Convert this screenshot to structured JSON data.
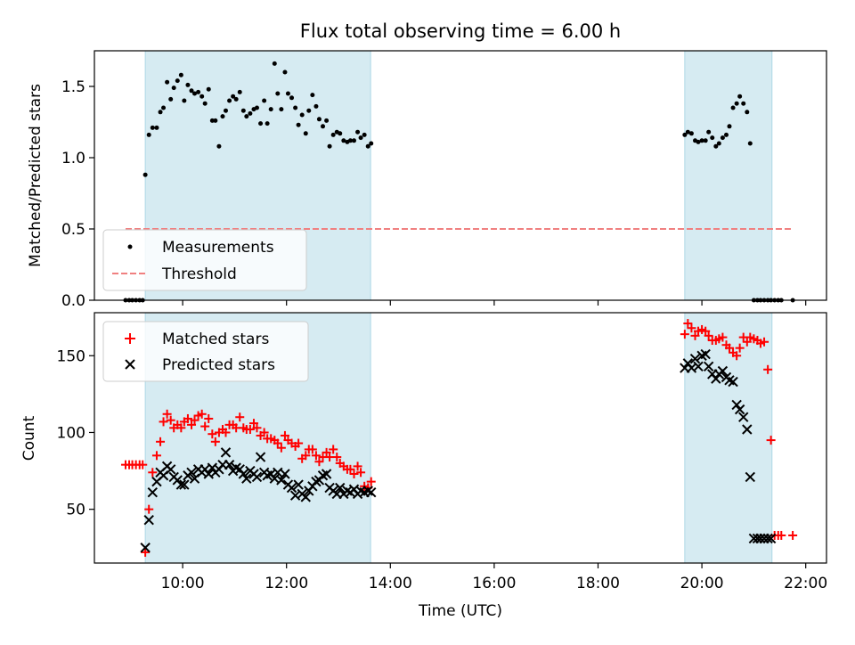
{
  "figure": {
    "title": "Flux total observing time = 6.00 h"
  },
  "chart_data": [
    {
      "type": "scatter",
      "ylabel": "Matched/Predicted stars",
      "ylim": [
        0,
        1.75
      ],
      "xlim": [
        8.3,
        22.4
      ],
      "yticks": [
        0.0,
        0.5,
        1.0,
        1.5
      ],
      "ytick_labels": [
        "0.0",
        "0.5",
        "1.0",
        "1.5"
      ],
      "observing_windows": [
        [
          9.28,
          13.62
        ],
        [
          19.67,
          21.35
        ]
      ],
      "legend": {
        "position": "lower-left",
        "entries": [
          "Measurements",
          "Threshold"
        ]
      },
      "threshold": {
        "name": "Threshold",
        "y": 0.5,
        "x": [
          8.9,
          21.75
        ],
        "color": "#f08080"
      },
      "series": [
        {
          "name": "Measurements",
          "color": "#000000",
          "x": [
            8.9,
            8.97,
            9.03,
            9.1,
            9.17,
            9.23,
            9.28,
            9.35,
            9.42,
            9.5,
            9.57,
            9.63,
            9.7,
            9.77,
            9.83,
            9.9,
            9.97,
            10.03,
            10.1,
            10.17,
            10.23,
            10.3,
            10.37,
            10.43,
            10.5,
            10.57,
            10.63,
            10.7,
            10.77,
            10.83,
            10.9,
            10.97,
            11.03,
            11.1,
            11.17,
            11.23,
            11.3,
            11.37,
            11.43,
            11.5,
            11.57,
            11.63,
            11.7,
            11.77,
            11.83,
            11.9,
            11.97,
            12.03,
            12.1,
            12.17,
            12.23,
            12.3,
            12.37,
            12.43,
            12.5,
            12.57,
            12.63,
            12.7,
            12.77,
            12.83,
            12.9,
            12.97,
            13.03,
            13.1,
            13.17,
            13.23,
            13.3,
            13.37,
            13.43,
            13.5,
            13.57,
            13.63,
            19.67,
            19.73,
            19.8,
            19.87,
            19.93,
            20.0,
            20.07,
            20.13,
            20.2,
            20.27,
            20.33,
            20.4,
            20.47,
            20.53,
            20.6,
            20.67,
            20.73,
            20.8,
            20.87,
            20.93,
            21.0,
            21.07,
            21.13,
            21.2,
            21.27,
            21.33,
            21.4,
            21.47,
            21.53,
            21.75
          ],
          "y": [
            0.0,
            0.0,
            0.0,
            0.0,
            0.0,
            0.0,
            0.88,
            1.16,
            1.21,
            1.21,
            1.32,
            1.35,
            1.53,
            1.41,
            1.49,
            1.54,
            1.58,
            1.4,
            1.51,
            1.47,
            1.45,
            1.46,
            1.43,
            1.38,
            1.48,
            1.26,
            1.26,
            1.08,
            1.29,
            1.33,
            1.4,
            1.43,
            1.41,
            1.46,
            1.33,
            1.29,
            1.31,
            1.34,
            1.35,
            1.24,
            1.4,
            1.24,
            1.34,
            1.66,
            1.45,
            1.34,
            1.6,
            1.45,
            1.42,
            1.35,
            1.23,
            1.3,
            1.17,
            1.33,
            1.44,
            1.36,
            1.27,
            1.22,
            1.26,
            1.08,
            1.16,
            1.18,
            1.17,
            1.12,
            1.11,
            1.12,
            1.12,
            1.18,
            1.14,
            1.16,
            1.08,
            1.1,
            1.16,
            1.18,
            1.17,
            1.12,
            1.11,
            1.12,
            1.12,
            1.18,
            1.14,
            1.08,
            1.1,
            1.14,
            1.16,
            1.22,
            1.35,
            1.38,
            1.43,
            1.38,
            1.32,
            1.1,
            0.0,
            0.0,
            0.0,
            0.0,
            0.0,
            0.0,
            0.0,
            0.0,
            0.0,
            0.0
          ]
        }
      ]
    },
    {
      "type": "scatter",
      "xlabel": "Time (UTC)",
      "ylabel": "Count",
      "ylim": [
        15,
        178
      ],
      "xlim": [
        8.3,
        22.4
      ],
      "yticks": [
        50,
        100,
        150
      ],
      "ytick_labels": [
        "50",
        "100",
        "150"
      ],
      "xticks": [
        10,
        12,
        14,
        16,
        18,
        20,
        22
      ],
      "xtick_labels": [
        "10:00",
        "12:00",
        "14:00",
        "16:00",
        "18:00",
        "20:00",
        "22:00"
      ],
      "observing_windows": [
        [
          9.28,
          13.62
        ],
        [
          19.67,
          21.35
        ]
      ],
      "legend": {
        "position": "upper-left",
        "entries": [
          "Matched stars",
          "Predicted stars"
        ]
      },
      "series": [
        {
          "name": "Matched stars",
          "marker": "+",
          "color": "#ff0000",
          "x": [
            8.9,
            8.97,
            9.03,
            9.1,
            9.17,
            9.23,
            9.28,
            9.35,
            9.42,
            9.5,
            9.57,
            9.63,
            9.7,
            9.77,
            9.83,
            9.9,
            9.97,
            10.03,
            10.1,
            10.17,
            10.23,
            10.3,
            10.37,
            10.43,
            10.5,
            10.57,
            10.63,
            10.7,
            10.77,
            10.83,
            10.9,
            10.97,
            11.03,
            11.1,
            11.17,
            11.23,
            11.3,
            11.37,
            11.43,
            11.5,
            11.57,
            11.63,
            11.7,
            11.77,
            11.83,
            11.9,
            11.97,
            12.03,
            12.1,
            12.17,
            12.23,
            12.3,
            12.37,
            12.43,
            12.5,
            12.57,
            12.63,
            12.7,
            12.77,
            12.83,
            12.9,
            12.97,
            13.03,
            13.1,
            13.17,
            13.23,
            13.3,
            13.37,
            13.43,
            13.5,
            13.57,
            13.63,
            19.67,
            19.73,
            19.8,
            19.87,
            19.93,
            20.0,
            20.07,
            20.13,
            20.2,
            20.27,
            20.33,
            20.4,
            20.47,
            20.53,
            20.6,
            20.67,
            20.73,
            20.8,
            20.87,
            20.93,
            21.0,
            21.07,
            21.13,
            21.2,
            21.27,
            21.33,
            21.4,
            21.47,
            21.53,
            21.75
          ],
          "y": [
            79,
            79,
            79,
            79,
            79,
            79,
            22,
            50,
            74,
            85,
            94,
            107,
            112,
            108,
            103,
            105,
            103,
            107,
            109,
            105,
            108,
            111,
            112,
            104,
            109,
            99,
            94,
            100,
            102,
            100,
            105,
            105,
            103,
            110,
            103,
            102,
            102,
            106,
            103,
            98,
            100,
            96,
            96,
            95,
            93,
            90,
            98,
            95,
            93,
            91,
            93,
            83,
            85,
            89,
            89,
            85,
            81,
            84,
            87,
            84,
            89,
            84,
            80,
            78,
            76,
            76,
            73,
            78,
            74,
            65,
            64,
            68,
            164,
            171,
            168,
            163,
            166,
            167,
            166,
            163,
            160,
            160,
            161,
            162,
            157,
            155,
            152,
            150,
            155,
            162,
            159,
            162,
            161,
            160,
            158,
            159,
            141,
            95,
            33,
            33,
            33,
            33
          ]
        },
        {
          "name": "Predicted stars",
          "marker": "x",
          "color": "#000000",
          "x": [
            9.28,
            9.35,
            9.42,
            9.5,
            9.57,
            9.63,
            9.7,
            9.77,
            9.83,
            9.9,
            9.97,
            10.03,
            10.1,
            10.17,
            10.23,
            10.3,
            10.37,
            10.43,
            10.5,
            10.57,
            10.63,
            10.7,
            10.77,
            10.83,
            10.9,
            10.97,
            11.03,
            11.1,
            11.17,
            11.23,
            11.3,
            11.37,
            11.43,
            11.5,
            11.57,
            11.63,
            11.7,
            11.77,
            11.83,
            11.9,
            11.97,
            12.03,
            12.1,
            12.17,
            12.23,
            12.3,
            12.37,
            12.43,
            12.5,
            12.57,
            12.63,
            12.7,
            12.77,
            12.83,
            12.9,
            12.97,
            13.03,
            13.1,
            13.17,
            13.23,
            13.3,
            13.37,
            13.43,
            13.5,
            13.57,
            13.63,
            19.67,
            19.73,
            19.8,
            19.87,
            19.93,
            20.0,
            20.07,
            20.13,
            20.2,
            20.27,
            20.33,
            20.4,
            20.47,
            20.53,
            20.6,
            20.67,
            20.73,
            20.8,
            20.87,
            20.93,
            21.0,
            21.07,
            21.13,
            21.2,
            21.27,
            21.33
          ],
          "y": [
            25,
            43,
            61,
            68,
            74,
            72,
            78,
            76,
            71,
            69,
            66,
            66,
            72,
            74,
            70,
            76,
            74,
            76,
            73,
            77,
            74,
            76,
            79,
            87,
            79,
            75,
            77,
            76,
            73,
            70,
            75,
            73,
            71,
            84,
            74,
            72,
            73,
            70,
            74,
            69,
            73,
            66,
            64,
            59,
            66,
            60,
            58,
            62,
            65,
            68,
            69,
            72,
            73,
            64,
            62,
            60,
            64,
            60,
            62,
            61,
            63,
            60,
            62,
            61,
            62,
            61,
            142,
            145,
            142,
            148,
            143,
            150,
            151,
            143,
            138,
            135,
            138,
            140,
            136,
            134,
            133,
            118,
            115,
            110,
            102,
            71,
            31,
            31,
            31,
            31,
            31,
            31
          ]
        }
      ]
    }
  ]
}
